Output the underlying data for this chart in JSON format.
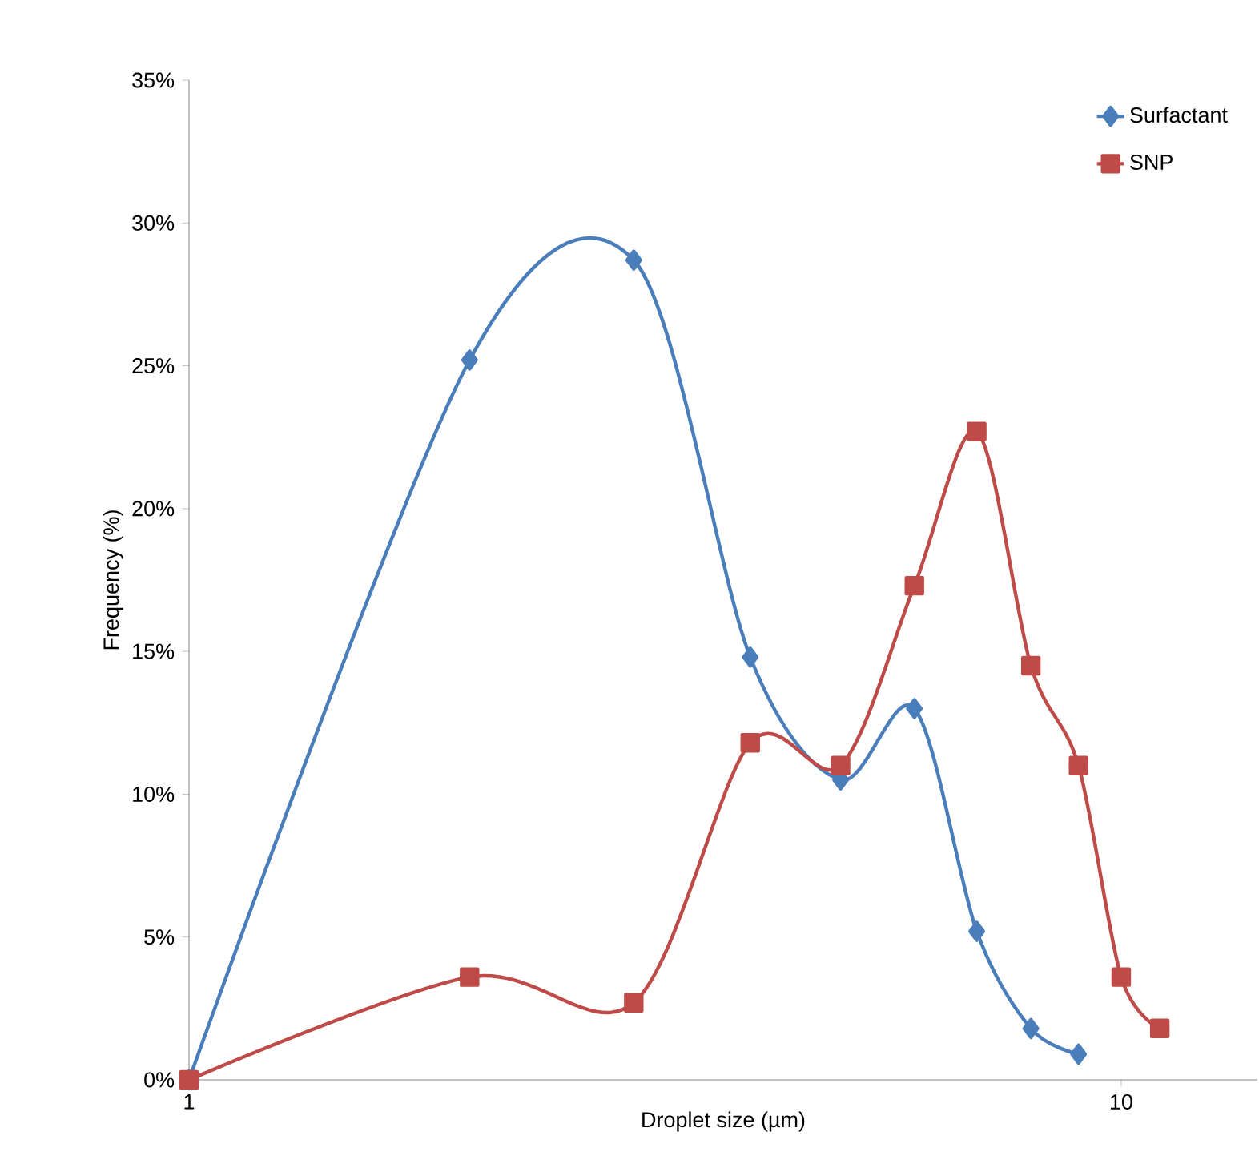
{
  "chart_data": {
    "type": "line",
    "xlabel": "Droplet size (µm)",
    "ylabel": "Frequency (%)",
    "log": "x",
    "xlim": [
      1,
      14
    ],
    "xticks": [
      1,
      10
    ],
    "ylim": [
      0,
      35
    ],
    "yticks": [
      {
        "value": 0,
        "label": "0%"
      },
      {
        "value": 5,
        "label": "5%"
      },
      {
        "value": 10,
        "label": "10%"
      },
      {
        "value": 15,
        "label": "15%"
      },
      {
        "value": 20,
        "label": "20%"
      },
      {
        "value": 25,
        "label": "25%"
      },
      {
        "value": 30,
        "label": "30%"
      },
      {
        "value": 35,
        "label": "35%"
      }
    ],
    "grid": false,
    "legend": "top right",
    "line_style": "solid",
    "series": [
      {
        "name": "Surfactant",
        "color": "#4a7ebb",
        "marker": "diamond",
        "x": [
          1,
          2,
          3,
          4,
          5,
          6,
          7,
          8,
          9
        ],
        "values": [
          0,
          25.2,
          28.7,
          14.8,
          10.5,
          13.0,
          5.2,
          1.8,
          0.9
        ]
      },
      {
        "name": "SNP",
        "color": "#be4b48",
        "marker": "square",
        "x": [
          1,
          2,
          3,
          4,
          5,
          6,
          7,
          8,
          9,
          10,
          11
        ],
        "values": [
          0,
          3.6,
          2.7,
          11.8,
          11.0,
          17.3,
          22.7,
          14.5,
          11.0,
          3.6,
          1.8
        ]
      }
    ]
  }
}
